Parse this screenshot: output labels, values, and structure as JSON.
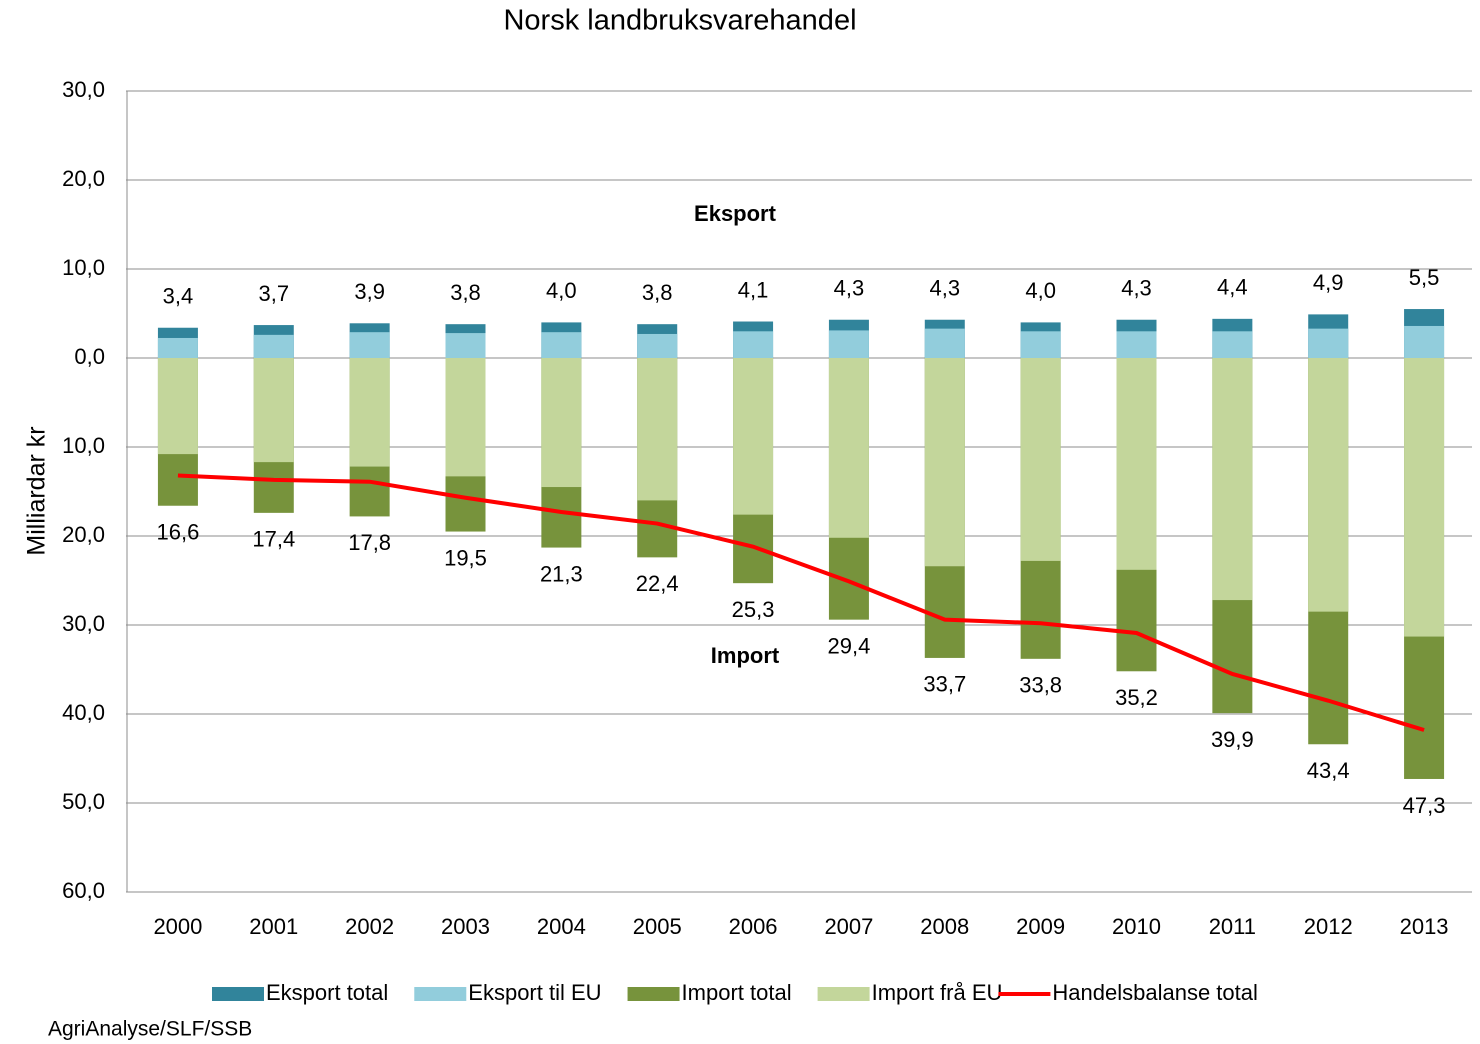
{
  "chart_data": {
    "type": "bar",
    "title": "Norsk landbruksvarehandel",
    "y_label": "Milliardar kr",
    "annotations": [
      "Eksport",
      "Import"
    ],
    "source": "AgriAnalyse/SLF/SSB",
    "categories": [
      "2000",
      "2001",
      "2002",
      "2003",
      "2004",
      "2005",
      "2006",
      "2007",
      "2008",
      "2009",
      "2010",
      "2011",
      "2012",
      "2013"
    ],
    "series": [
      {
        "name": "Eksport total",
        "type": "bar",
        "color": "#31849b",
        "label_color": "#000000",
        "values": [
          3.4,
          3.7,
          3.9,
          3.8,
          4.0,
          3.8,
          4.1,
          4.3,
          4.3,
          4.0,
          4.3,
          4.4,
          4.9,
          5.5
        ],
        "value_labels": [
          "3,4",
          "3,7",
          "3,9",
          "3,8",
          "4,0",
          "3,8",
          "4,1",
          "4,3",
          "4,3",
          "4,0",
          "4,3",
          "4,4",
          "4,9",
          "5,5"
        ]
      },
      {
        "name": "Eksport til EU",
        "type": "bar",
        "color": "#92cddc",
        "values": [
          2.25,
          2.6,
          2.9,
          2.8,
          2.9,
          2.7,
          3.0,
          3.1,
          3.3,
          3.0,
          3.0,
          3.0,
          3.3,
          3.6
        ]
      },
      {
        "name": "Import total",
        "type": "bar",
        "color": "#77933c",
        "label_color": "#ff0000",
        "values": [
          -16.6,
          -17.4,
          -17.8,
          -19.5,
          -21.3,
          -22.4,
          -25.3,
          -29.4,
          -33.7,
          -33.8,
          -35.2,
          -39.9,
          -43.4,
          -47.3
        ],
        "value_labels": [
          "16,6",
          "17,4",
          "17,8",
          "19,5",
          "21,3",
          "22,4",
          "25,3",
          "29,4",
          "33,7",
          "33,8",
          "35,2",
          "39,9",
          "43,4",
          "47,3"
        ]
      },
      {
        "name": "Import frå EU",
        "type": "bar",
        "color": "#c3d69b",
        "values": [
          -10.8,
          -11.7,
          -12.2,
          -13.3,
          -14.5,
          -16.0,
          -17.6,
          -20.2,
          -23.4,
          -22.8,
          -23.8,
          -27.2,
          -28.5,
          -31.3
        ]
      },
      {
        "name": "Handelsbalanse total",
        "type": "line",
        "color": "#ff0000",
        "values": [
          -13.2,
          -13.7,
          -13.9,
          -15.7,
          -17.3,
          -18.6,
          -21.2,
          -25.1,
          -29.4,
          -29.8,
          -30.9,
          -35.5,
          -38.5,
          -41.8
        ]
      }
    ],
    "ylim": [
      -60,
      30
    ],
    "yticks": [
      {
        "value": -60,
        "label": "60,0"
      },
      {
        "value": -50,
        "label": "50,0"
      },
      {
        "value": -40,
        "label": "40,0"
      },
      {
        "value": -30,
        "label": "30,0"
      },
      {
        "value": -20,
        "label": "20,0"
      },
      {
        "value": -10,
        "label": "10,0"
      },
      {
        "value": 0,
        "label": "0,0"
      },
      {
        "value": 10,
        "label": "10,0"
      },
      {
        "value": 20,
        "label": "20,0"
      },
      {
        "value": 30,
        "label": "30,0"
      }
    ],
    "ytick_colors": [
      "#ff0000",
      "#ff0000",
      "#000000",
      "#000000",
      "#000000",
      "#000000",
      "#000000",
      "#000000",
      "#000000",
      "#000000"
    ],
    "grid": true,
    "legend": "bottom"
  }
}
